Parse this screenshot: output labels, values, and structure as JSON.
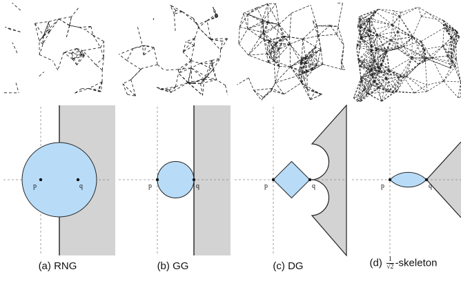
{
  "point_labels": {
    "p": "p",
    "q": "q"
  },
  "captions": [
    {
      "tag": "(a)",
      "name": "RNG"
    },
    {
      "tag": "(b)",
      "name": "GG"
    },
    {
      "tag": "(c)",
      "name": "DG"
    },
    {
      "tag": "(d)",
      "name_numerator": "1",
      "name_denominator": "√2",
      "name_suffix": "-skeleton"
    }
  ],
  "colors": {
    "region_fill": "#b8dcf8",
    "halfplane_fill": "#d3d3d3",
    "edge": "#222222",
    "guide": "#888888"
  }
}
